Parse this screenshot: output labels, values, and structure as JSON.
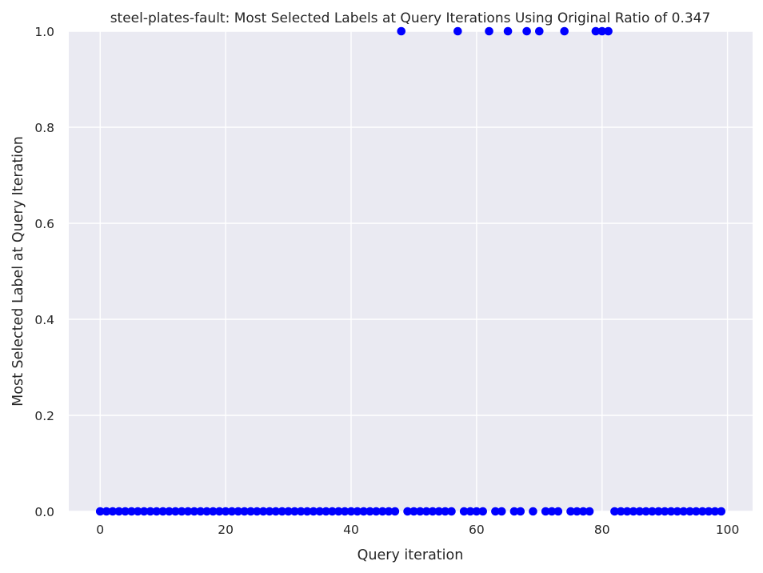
{
  "chart_data": {
    "type": "scatter",
    "title": "steel-plates-fault: Most Selected Labels at Query Iterations Using Original Ratio of 0.347",
    "xlabel": "Query iteration",
    "ylabel": "Most Selected Label at Query Iteration",
    "xlim": [
      -5,
      104
    ],
    "ylim": [
      0,
      1
    ],
    "xticks": [
      0,
      20,
      40,
      60,
      80,
      100
    ],
    "yticks": [
      0.0,
      0.2,
      0.4,
      0.6,
      0.8,
      1.0
    ],
    "xtick_labels": [
      "0",
      "20",
      "40",
      "60",
      "80",
      "100"
    ],
    "ytick_labels": [
      "0.0",
      "0.2",
      "0.4",
      "0.6",
      "0.8",
      "1.0"
    ],
    "grid": true,
    "colors": {
      "background": "#eaeaf2",
      "grid": "#ffffff",
      "marker": "#0000ff"
    },
    "x": [
      0,
      1,
      2,
      3,
      4,
      5,
      6,
      7,
      8,
      9,
      10,
      11,
      12,
      13,
      14,
      15,
      16,
      17,
      18,
      19,
      20,
      21,
      22,
      23,
      24,
      25,
      26,
      27,
      28,
      29,
      30,
      31,
      32,
      33,
      34,
      35,
      36,
      37,
      38,
      39,
      40,
      41,
      42,
      43,
      44,
      45,
      46,
      47,
      48,
      49,
      50,
      51,
      52,
      53,
      54,
      55,
      56,
      57,
      58,
      59,
      60,
      61,
      62,
      63,
      64,
      65,
      66,
      67,
      68,
      69,
      70,
      71,
      72,
      73,
      74,
      75,
      76,
      77,
      78,
      79,
      80,
      81,
      82,
      83,
      84,
      85,
      86,
      87,
      88,
      89,
      90,
      91,
      92,
      93,
      94,
      95,
      96,
      97,
      98,
      99
    ],
    "y": [
      0,
      0,
      0,
      0,
      0,
      0,
      0,
      0,
      0,
      0,
      0,
      0,
      0,
      0,
      0,
      0,
      0,
      0,
      0,
      0,
      0,
      0,
      0,
      0,
      0,
      0,
      0,
      0,
      0,
      0,
      0,
      0,
      0,
      0,
      0,
      0,
      0,
      0,
      0,
      0,
      0,
      0,
      0,
      0,
      0,
      0,
      0,
      0,
      1,
      0,
      0,
      0,
      0,
      0,
      0,
      0,
      0,
      1,
      0,
      0,
      0,
      0,
      1,
      0,
      0,
      1,
      0,
      0,
      1,
      0,
      1,
      0,
      0,
      0,
      1,
      0,
      0,
      0,
      0,
      1,
      1,
      1,
      0,
      0,
      0,
      0,
      0,
      0,
      0,
      0,
      0,
      0,
      0,
      0,
      0,
      0,
      0,
      0,
      0,
      0
    ]
  }
}
